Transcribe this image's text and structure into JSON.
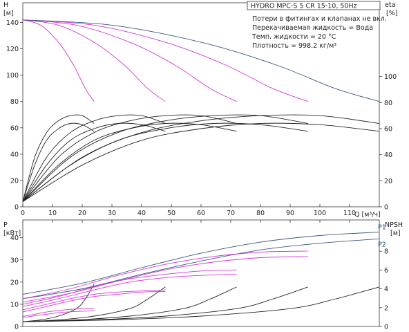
{
  "chart_data": [
    {
      "type": "line",
      "title": "HYDRO MPC-S 5 CR 15-10, 50Hz",
      "notes": [
        "Потери в фитингах и клапанах не вкл.",
        "Перекачиваемая жидкость = Вода",
        "Темп. жидкости = 20 °C",
        "Плотность = 998.2 кг/м³"
      ],
      "xlabel": "Q [м³/ч]",
      "ylabel": "H",
      "ylabel_unit": "[м]",
      "y2label": "eta",
      "y2label_unit": "[%]",
      "xlim": [
        0,
        120
      ],
      "ylim": [
        0,
        140
      ],
      "y2lim": [
        0,
        120
      ],
      "xticks": [
        0,
        10,
        20,
        30,
        40,
        50,
        60,
        70,
        80,
        90,
        100,
        110
      ],
      "yticks": [
        0,
        20,
        40,
        60,
        80,
        100,
        120,
        140
      ],
      "y2ticks": [
        0,
        20,
        40,
        60,
        80,
        100
      ],
      "grid": false,
      "head_series": [
        {
          "color": "#d236d2",
          "x": [
            0,
            6,
            12,
            17,
            21,
            24
          ],
          "y": [
            142,
            138,
            125,
            108,
            90,
            80
          ]
        },
        {
          "color": "#d236d2",
          "x": [
            0,
            12,
            24,
            34,
            42,
            48
          ],
          "y": [
            142,
            138,
            125,
            108,
            90,
            80
          ]
        },
        {
          "color": "#d236d2",
          "x": [
            0,
            18,
            36,
            51,
            63,
            72
          ],
          "y": [
            142,
            138,
            125,
            108,
            90,
            80
          ]
        },
        {
          "color": "#d236d2",
          "x": [
            0,
            24,
            48,
            68,
            84,
            96
          ],
          "y": [
            142,
            138,
            125,
            108,
            90,
            80
          ]
        },
        {
          "color": "#3a5580",
          "x": [
            0,
            30,
            60,
            85,
            105,
            120
          ],
          "y": [
            142,
            138,
            125,
            108,
            90,
            80
          ]
        }
      ],
      "eta_series": [
        {
          "color": "#222222",
          "x": [
            0,
            4,
            8,
            12,
            16,
            20,
            24
          ],
          "y": [
            4,
            38,
            57,
            66,
            70,
            70,
            64
          ]
        },
        {
          "color": "#222222",
          "x": [
            0,
            4,
            8,
            12,
            16,
            20,
            24
          ],
          "y": [
            4,
            32,
            51,
            60,
            64,
            63,
            58
          ]
        },
        {
          "color": "#222222",
          "x": [
            0,
            8,
            16,
            24,
            32,
            40,
            48
          ],
          "y": [
            4,
            38,
            57,
            66,
            70,
            70,
            64
          ]
        },
        {
          "color": "#222222",
          "x": [
            0,
            8,
            16,
            24,
            32,
            40,
            48
          ],
          "y": [
            4,
            32,
            51,
            60,
            64,
            63,
            58
          ]
        },
        {
          "color": "#222222",
          "x": [
            0,
            12,
            24,
            36,
            48,
            60,
            72
          ],
          "y": [
            4,
            38,
            57,
            66,
            70,
            70,
            64
          ]
        },
        {
          "color": "#222222",
          "x": [
            0,
            12,
            24,
            36,
            48,
            60,
            72
          ],
          "y": [
            4,
            32,
            51,
            60,
            64,
            63,
            58
          ]
        },
        {
          "color": "#222222",
          "x": [
            0,
            16,
            32,
            48,
            64,
            80,
            96
          ],
          "y": [
            4,
            38,
            57,
            66,
            70,
            70,
            64
          ]
        },
        {
          "color": "#222222",
          "x": [
            0,
            16,
            32,
            48,
            64,
            80,
            96
          ],
          "y": [
            4,
            32,
            51,
            60,
            64,
            63,
            58
          ]
        },
        {
          "color": "#222222",
          "x": [
            0,
            20,
            40,
            60,
            80,
            100,
            120
          ],
          "y": [
            4,
            38,
            57,
            66,
            70,
            70,
            64
          ]
        },
        {
          "color": "#222222",
          "x": [
            0,
            20,
            40,
            60,
            80,
            100,
            120
          ],
          "y": [
            4,
            32,
            51,
            60,
            64,
            63,
            58
          ]
        }
      ]
    },
    {
      "type": "line",
      "ylabel": "P",
      "ylabel_unit": "[кВт]",
      "y2label": "NPSH",
      "y2label_unit": "[м]",
      "xlim": [
        0,
        120
      ],
      "ylim": [
        0,
        48
      ],
      "y2lim": [
        0,
        10
      ],
      "yticks": [
        0,
        10,
        20,
        30,
        40
      ],
      "y2ticks": [
        0,
        2,
        4,
        6,
        8
      ],
      "grid": false,
      "power_series": [
        {
          "name": "P1",
          "color": "#3a5580",
          "x": [
            0,
            20,
            40,
            60,
            80,
            100,
            120
          ],
          "y": [
            14.5,
            19.5,
            26.5,
            33,
            38,
            41,
            42.5
          ]
        },
        {
          "name": "P2",
          "color": "#3a5580",
          "x": [
            0,
            20,
            40,
            60,
            80,
            100,
            120
          ],
          "y": [
            12.5,
            17,
            23.5,
            29.5,
            34.5,
            37.5,
            39.5
          ]
        },
        {
          "color": "#d236d2",
          "x": [
            0,
            16,
            32,
            48,
            64,
            80,
            96
          ],
          "y": [
            12.5,
            17,
            23,
            28,
            31.5,
            33.5,
            34
          ]
        },
        {
          "color": "#d236d2",
          "x": [
            0,
            16,
            32,
            48,
            64,
            80,
            96
          ],
          "y": [
            11,
            15,
            20.5,
            25.5,
            29,
            31,
            31.5
          ]
        },
        {
          "color": "#d236d2",
          "x": [
            0,
            12,
            24,
            36,
            48,
            60,
            72
          ],
          "y": [
            10,
            13.5,
            18,
            21.5,
            23.5,
            25,
            25.5
          ]
        },
        {
          "color": "#d236d2",
          "x": [
            0,
            12,
            24,
            36,
            48,
            60,
            72
          ],
          "y": [
            9,
            12.5,
            16.5,
            20,
            22,
            23,
            23.5
          ]
        },
        {
          "color": "#d236d2",
          "x": [
            0,
            8,
            16,
            24,
            32,
            40,
            48
          ],
          "y": [
            7.5,
            10,
            12.5,
            14.5,
            15.5,
            16,
            16.5
          ]
        },
        {
          "color": "#d236d2",
          "x": [
            0,
            8,
            16,
            24,
            32,
            40,
            48
          ],
          "y": [
            6.5,
            9,
            11.5,
            13.5,
            14.5,
            15.5,
            15.8
          ]
        },
        {
          "color": "#d236d2",
          "x": [
            0,
            4,
            8,
            12,
            16,
            20,
            24
          ],
          "y": [
            4.5,
            5.5,
            6.5,
            7.2,
            7.7,
            8,
            8.2
          ]
        },
        {
          "color": "#d236d2",
          "x": [
            0,
            4,
            8,
            12,
            16,
            20,
            24
          ],
          "y": [
            4,
            4.8,
            5.5,
            6.2,
            6.6,
            6.9,
            7
          ]
        }
      ],
      "npsh_series": [
        {
          "color": "#222222",
          "x": [
            0,
            6,
            12,
            18,
            21,
            24
          ],
          "y": [
            0.5,
            0.7,
            1.1,
            1.9,
            2.9,
            4.5
          ]
        },
        {
          "color": "#222222",
          "x": [
            0,
            12,
            24,
            36,
            42,
            48
          ],
          "y": [
            0.5,
            0.7,
            1.1,
            1.9,
            2.9,
            4.2
          ]
        },
        {
          "color": "#222222",
          "x": [
            0,
            18,
            36,
            54,
            63,
            72
          ],
          "y": [
            0.5,
            0.7,
            1.1,
            1.9,
            2.9,
            4.2
          ]
        },
        {
          "color": "#222222",
          "x": [
            0,
            24,
            48,
            72,
            84,
            96
          ],
          "y": [
            0.5,
            0.7,
            1.1,
            1.9,
            2.9,
            4.2
          ]
        },
        {
          "color": "#222222",
          "x": [
            0,
            30,
            60,
            90,
            105,
            120
          ],
          "y": [
            0.5,
            0.7,
            1.1,
            1.9,
            2.9,
            4.2
          ]
        }
      ]
    }
  ]
}
